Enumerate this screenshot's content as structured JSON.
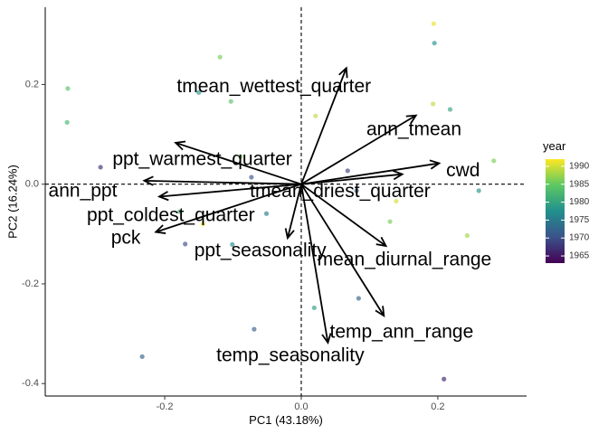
{
  "chart_data": {
    "type": "scatter",
    "xlabel": "PC1 (43.18%)",
    "ylabel": "PC2 (16.24%)",
    "xlim": [
      -0.375,
      0.33
    ],
    "ylim": [
      -0.425,
      0.355
    ],
    "x_ticks": [
      {
        "value": -0.2,
        "label": "-0.2"
      },
      {
        "value": 0.0,
        "label": "0.0"
      },
      {
        "value": 0.2,
        "label": "0.2"
      }
    ],
    "y_ticks": [
      {
        "value": 0.2,
        "label": "0.2"
      },
      {
        "value": 0.0,
        "label": "0.0"
      },
      {
        "value": -0.2,
        "label": "-0.2"
      },
      {
        "value": -0.4,
        "label": "-0.4"
      }
    ],
    "reference_lines": {
      "x": 0,
      "y": 0,
      "style": "dashed"
    },
    "grid": false,
    "points": [
      {
        "x": 0.194,
        "y": 0.322,
        "year": 1991
      },
      {
        "x": 0.195,
        "y": 0.283,
        "year": 1978
      },
      {
        "x": -0.119,
        "y": 0.255,
        "year": 1986
      },
      {
        "x": -0.342,
        "y": 0.192,
        "year": 1984
      },
      {
        "x": -0.15,
        "y": 0.184,
        "year": 1978
      },
      {
        "x": -0.103,
        "y": 0.166,
        "year": 1984
      },
      {
        "x": 0.193,
        "y": 0.161,
        "year": 1989
      },
      {
        "x": 0.218,
        "y": 0.15,
        "year": 1980
      },
      {
        "x": 0.021,
        "y": 0.137,
        "year": 1989
      },
      {
        "x": -0.343,
        "y": 0.124,
        "year": 1982
      },
      {
        "x": -0.089,
        "y": 0.055,
        "year": 1986
      },
      {
        "x": 0.282,
        "y": 0.047,
        "year": 1986
      },
      {
        "x": -0.294,
        "y": 0.034,
        "year": 1967
      },
      {
        "x": 0.068,
        "y": 0.027,
        "year": 1969
      },
      {
        "x": -0.073,
        "y": 0.014,
        "year": 1971
      },
      {
        "x": 0.26,
        "y": -0.013,
        "year": 1978
      },
      {
        "x": 0.081,
        "y": -0.013,
        "year": 1972
      },
      {
        "x": 0.139,
        "y": -0.034,
        "year": 1990
      },
      {
        "x": -0.178,
        "y": -0.055,
        "year": 1982
      },
      {
        "x": -0.051,
        "y": -0.059,
        "year": 1975
      },
      {
        "x": 0.13,
        "y": -0.075,
        "year": 1986
      },
      {
        "x": -0.144,
        "y": -0.08,
        "year": 1992
      },
      {
        "x": 0.243,
        "y": -0.103,
        "year": 1988
      },
      {
        "x": -0.17,
        "y": -0.12,
        "year": 1970
      },
      {
        "x": -0.101,
        "y": -0.121,
        "year": 1977
      },
      {
        "x": 0.084,
        "y": -0.229,
        "year": 1972
      },
      {
        "x": 0.019,
        "y": -0.248,
        "year": 1979
      },
      {
        "x": -0.069,
        "y": -0.291,
        "year": 1972
      },
      {
        "x": -0.233,
        "y": -0.346,
        "year": 1972
      },
      {
        "x": 0.209,
        "y": -0.391,
        "year": 1966
      }
    ],
    "vectors": [
      {
        "name": "tmean_wettest_quarter",
        "x": 0.066,
        "y": 0.233,
        "label_x": -0.04,
        "label_y": 0.196
      },
      {
        "name": "ann_tmean",
        "x": 0.168,
        "y": 0.138,
        "label_x": 0.165,
        "label_y": 0.11
      },
      {
        "name": "ppt_warmest_quarter",
        "x": -0.184,
        "y": 0.083,
        "label_x": -0.145,
        "label_y": 0.05
      },
      {
        "name": "cwd",
        "x": 0.202,
        "y": 0.042,
        "label_x": 0.237,
        "label_y": 0.028
      },
      {
        "name": "ann_ppt",
        "x": -0.23,
        "y": 0.007,
        "label_x": -0.32,
        "label_y": -0.013
      },
      {
        "name": "tmean_driest_quarter",
        "x": 0.148,
        "y": 0.02,
        "label_x": 0.057,
        "label_y": -0.014
      },
      {
        "name": "ppt_coldest_quarter",
        "x": -0.208,
        "y": -0.025,
        "label_x": -0.191,
        "label_y": -0.062
      },
      {
        "name": "pck",
        "x": -0.213,
        "y": -0.096,
        "label_x": -0.257,
        "label_y": -0.108
      },
      {
        "name": "ppt_seasonality",
        "x": -0.02,
        "y": -0.108,
        "label_x": -0.06,
        "label_y": -0.133
      },
      {
        "name": "mean_diurnal_range",
        "x": 0.124,
        "y": -0.124,
        "label_x": 0.151,
        "label_y": -0.151
      },
      {
        "name": "temp_ann_range",
        "x": 0.121,
        "y": -0.264,
        "label_x": 0.147,
        "label_y": -0.296
      },
      {
        "name": "temp_seasonality",
        "x": 0.039,
        "y": -0.318,
        "label_x": -0.016,
        "label_y": -0.343
      }
    ],
    "legend": {
      "title": "year",
      "position": "right",
      "range": [
        1963,
        1992
      ],
      "breaks": [
        1990,
        1985,
        1980,
        1975,
        1970,
        1965
      ],
      "palette": "viridis",
      "gradient_colors": [
        "#440154",
        "#3b528b",
        "#21908d",
        "#5dc863",
        "#fde725"
      ]
    }
  }
}
